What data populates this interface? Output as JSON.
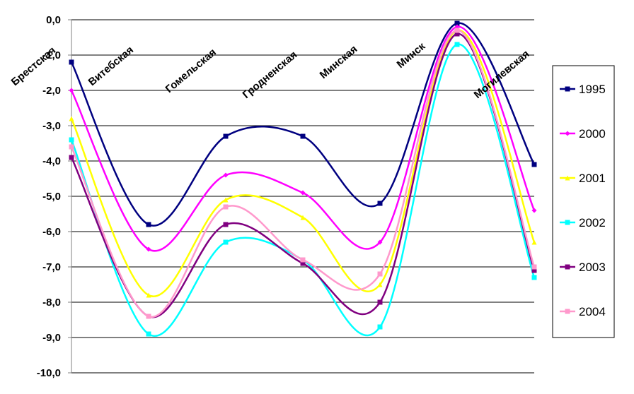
{
  "chart_data": {
    "type": "line",
    "title": "",
    "xlabel": "",
    "ylabel": "",
    "ylim": [
      -10,
      0
    ],
    "ytick_labels": [
      "0,0",
      "-1,0",
      "-2,0",
      "-3,0",
      "-4,0",
      "-5,0",
      "-6,0",
      "-7,0",
      "-8,0",
      "-9,0",
      "-10,0"
    ],
    "categories": [
      "Брестская",
      "Витебская",
      "Гомельская",
      "Гродненская",
      "Минская",
      "Минск",
      "Могилевская"
    ],
    "grid": true,
    "legend_position": "right",
    "series": [
      {
        "name": "1995",
        "color": "#000080",
        "marker": "square",
        "values": [
          -1.2,
          -5.8,
          -3.3,
          -3.3,
          -5.2,
          -0.1,
          -4.1
        ]
      },
      {
        "name": "2000",
        "color": "#FF00FF",
        "marker": "diamond",
        "values": [
          -2.0,
          -6.5,
          -4.4,
          -4.9,
          -6.3,
          -0.2,
          -5.4
        ]
      },
      {
        "name": "2001",
        "color": "#FFFF00",
        "marker": "triangle",
        "values": [
          -2.8,
          -7.8,
          -5.1,
          -5.6,
          -7.5,
          -0.3,
          -6.3
        ]
      },
      {
        "name": "2002",
        "color": "#00FFFF",
        "marker": "square",
        "values": [
          -3.4,
          -8.9,
          -6.3,
          -6.8,
          -8.7,
          -0.7,
          -7.3
        ]
      },
      {
        "name": "2003",
        "color": "#800080",
        "marker": "square",
        "values": [
          -3.9,
          -8.4,
          -5.8,
          -6.9,
          -8.0,
          -0.4,
          -7.1
        ]
      },
      {
        "name": "2004",
        "color": "#FF99CC",
        "marker": "square",
        "values": [
          -3.6,
          -8.4,
          -5.3,
          -6.8,
          -7.2,
          -0.3,
          -7.0
        ]
      }
    ]
  }
}
